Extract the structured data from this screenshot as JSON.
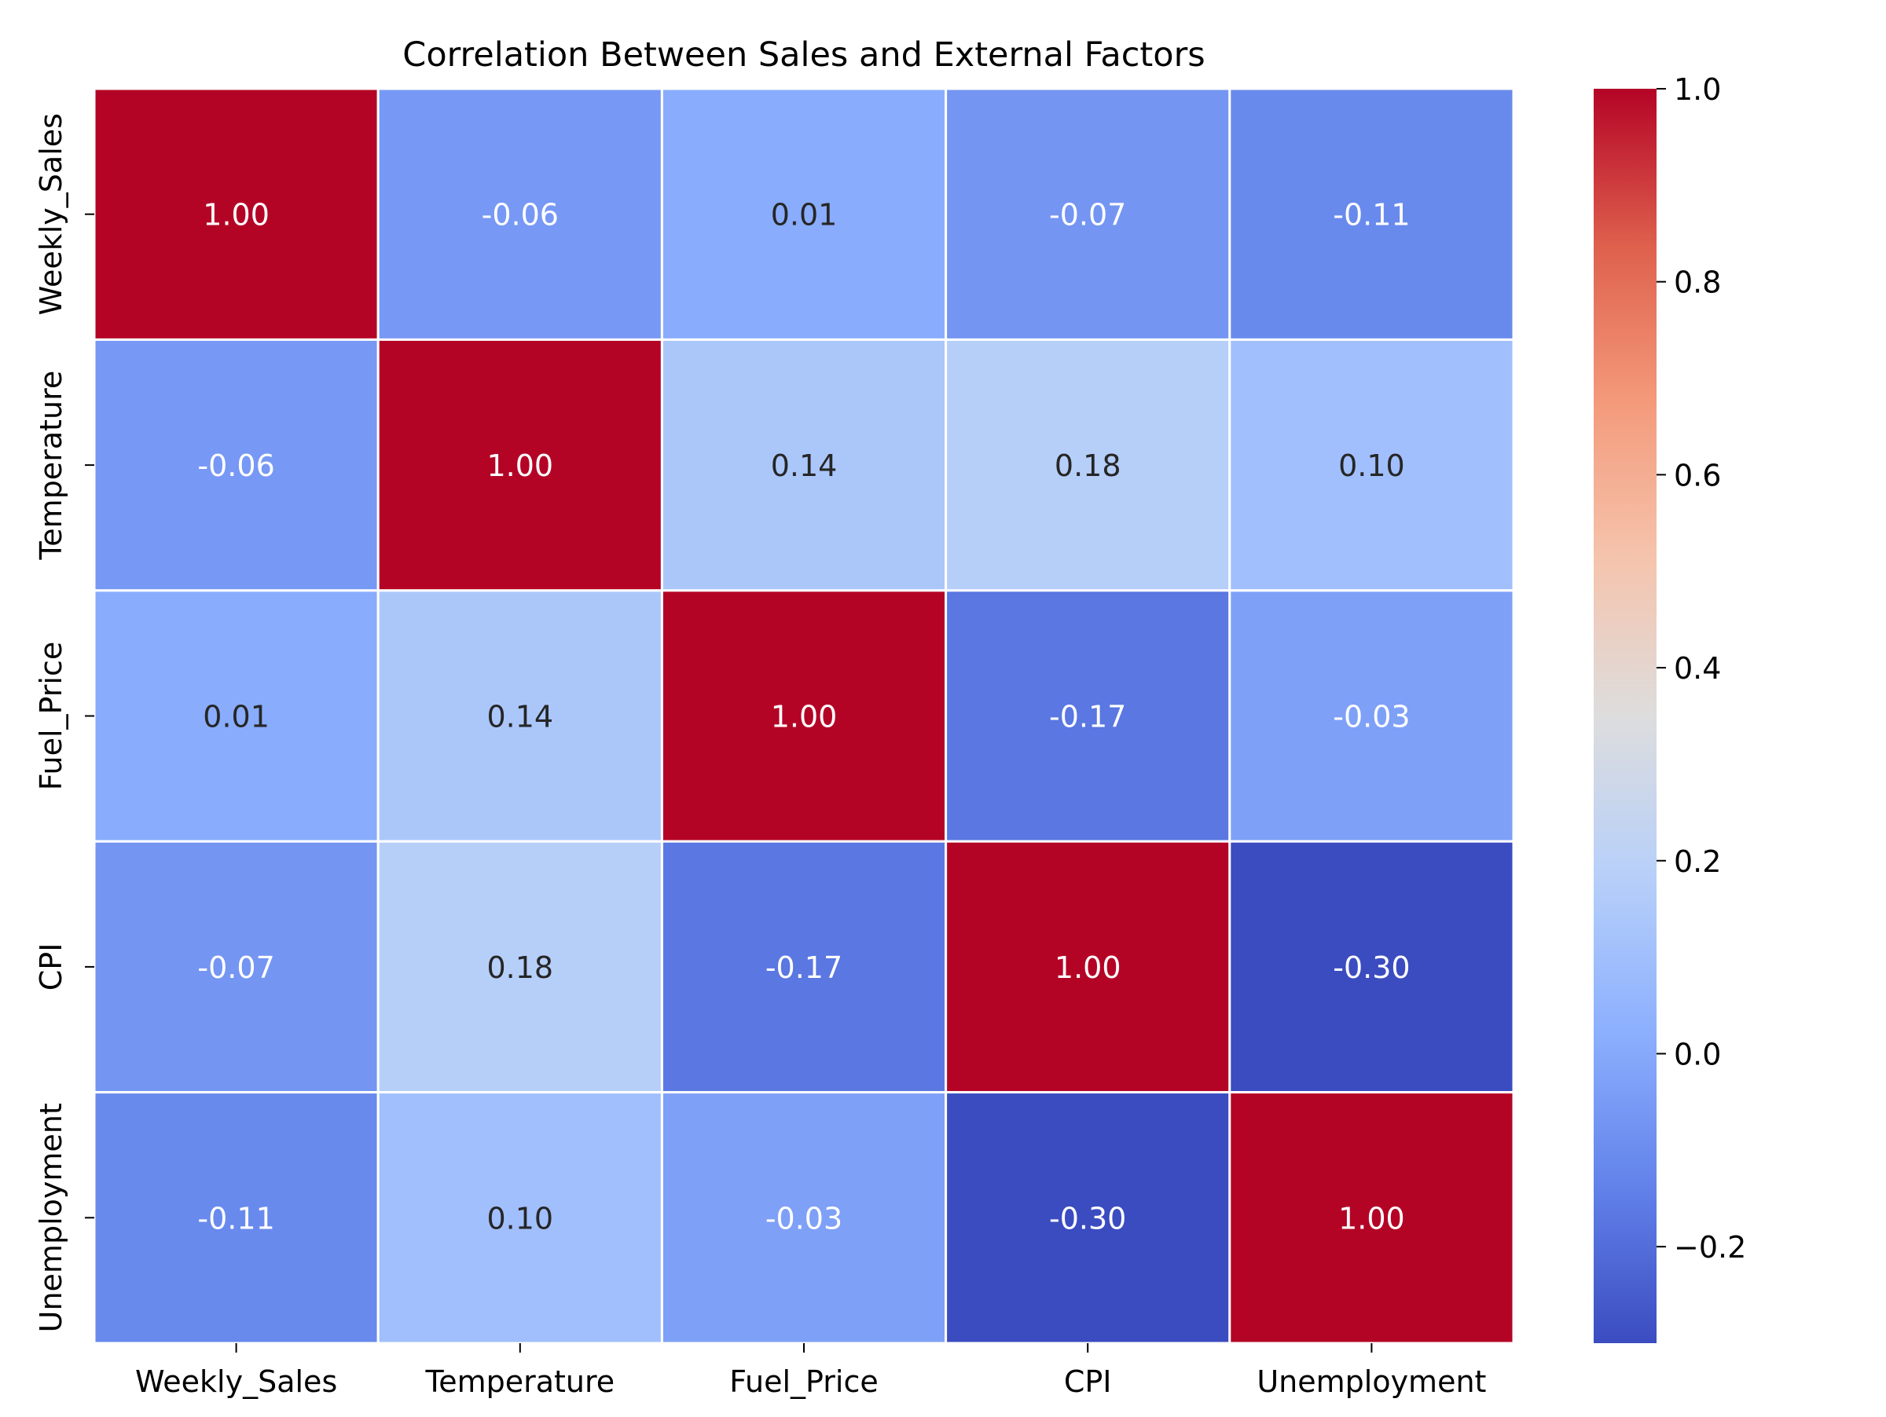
{
  "chart_data": {
    "type": "heatmap",
    "title": "Correlation Between Sales and External Factors",
    "xlabel": "",
    "ylabel": "",
    "x_categories": [
      "Weekly_Sales",
      "Temperature",
      "Fuel_Price",
      "CPI",
      "Unemployment"
    ],
    "y_categories": [
      "Weekly_Sales",
      "Temperature",
      "Fuel_Price",
      "CPI",
      "Unemployment"
    ],
    "values": [
      [
        1.0,
        -0.06,
        0.01,
        -0.07,
        -0.11
      ],
      [
        -0.06,
        1.0,
        0.14,
        0.18,
        0.1
      ],
      [
        0.01,
        0.14,
        1.0,
        -0.17,
        -0.03
      ],
      [
        -0.07,
        0.18,
        -0.17,
        1.0,
        -0.3
      ],
      [
        -0.11,
        0.1,
        -0.03,
        -0.3,
        1.0
      ]
    ],
    "value_format": "0.00",
    "colormap": "coolwarm",
    "color_range": [
      -0.3,
      1.0
    ],
    "colorbar": {
      "ticks": [
        -0.2,
        0.0,
        0.2,
        0.4,
        0.6,
        0.8,
        1.0
      ],
      "tick_labels": [
        "−0.2",
        "0.0",
        "0.2",
        "0.4",
        "0.6",
        "0.8",
        "1.0"
      ],
      "placement": "right"
    },
    "grid": false,
    "cell_border_color": "#ffffff"
  }
}
